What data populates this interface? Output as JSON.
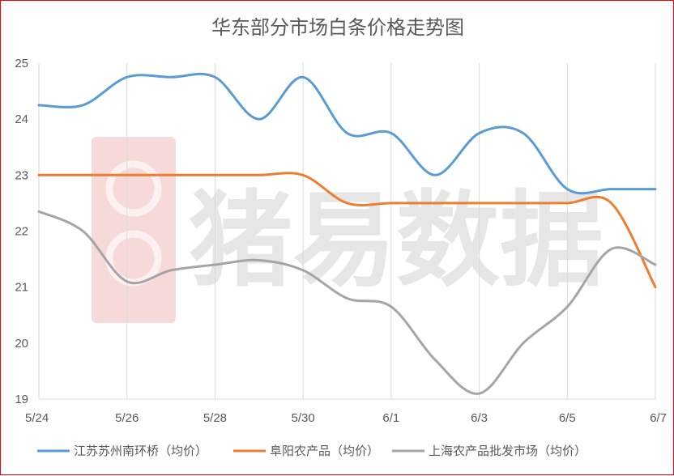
{
  "chart_data": {
    "type": "line",
    "title": "华东部分市场白条价格走势图",
    "xlabel": "",
    "ylabel": "",
    "categories": [
      "5/24",
      "5/25",
      "5/26",
      "5/27",
      "5/28",
      "5/29",
      "5/30",
      "5/31",
      "6/1",
      "6/2",
      "6/3",
      "6/4",
      "6/5",
      "6/6",
      "6/7"
    ],
    "x_tick_labels": [
      "5/24",
      "5/26",
      "5/28",
      "5/30",
      "6/1",
      "6/3",
      "6/5",
      "6/7"
    ],
    "ylim": [
      19,
      25
    ],
    "y_ticks": [
      19,
      20,
      21,
      22,
      23,
      24,
      25
    ],
    "grid": "vertical",
    "legend_position": "bottom",
    "series": [
      {
        "name": "江苏苏州南环桥（均价）",
        "color": "#5b9bd5",
        "values": [
          24.25,
          24.25,
          24.75,
          24.75,
          24.75,
          24.0,
          24.75,
          23.75,
          23.75,
          23.0,
          23.75,
          23.75,
          22.75,
          22.75,
          22.75
        ]
      },
      {
        "name": "阜阳农产品（均价）",
        "color": "#ed7d31",
        "values": [
          23.0,
          23.0,
          23.0,
          23.0,
          23.0,
          23.0,
          23.0,
          22.5,
          22.5,
          22.5,
          22.5,
          22.5,
          22.5,
          22.5,
          21.0
        ]
      },
      {
        "name": "上海农产品批发市场（均价）",
        "color": "#a5a5a5",
        "values": [
          22.35,
          22.0,
          21.1,
          21.3,
          21.4,
          21.48,
          21.3,
          20.8,
          20.65,
          19.7,
          19.1,
          20.0,
          20.65,
          21.68,
          21.4
        ]
      }
    ]
  },
  "watermark": {
    "text": "猪易数据",
    "logo": "pig-logo"
  }
}
